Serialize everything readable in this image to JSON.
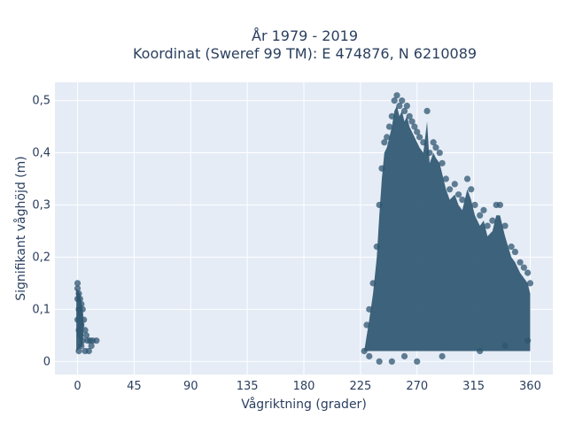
{
  "chart_data": {
    "type": "scatter",
    "title_line1": "År 1979 - 2019",
    "title_line2": "Koordinat (Sweref 99 TM): E 474876, N 6210089",
    "xlabel": "Vågriktning (grader)",
    "ylabel": "Signifikant våghöjd (m)",
    "xlim": [
      -18,
      378
    ],
    "ylim": [
      -0.025,
      0.535
    ],
    "xticks": [
      0,
      45,
      90,
      135,
      180,
      225,
      270,
      315,
      360
    ],
    "xtick_labels": [
      "0",
      "45",
      "90",
      "135",
      "180",
      "225",
      "270",
      "315",
      "360"
    ],
    "yticks": [
      0,
      0.1,
      0.2,
      0.3,
      0.4,
      0.5
    ],
    "ytick_labels": [
      "0",
      "0,1",
      "0,2",
      "0,3",
      "0,4",
      "0,5"
    ],
    "grid": true,
    "marker_color": "#2f5670",
    "plot_bg": "#e5ecf6",
    "points": [
      [
        0,
        0.15
      ],
      [
        0,
        0.14
      ],
      [
        1,
        0.13
      ],
      [
        2,
        0.12
      ],
      [
        0,
        0.12
      ],
      [
        3,
        0.11
      ],
      [
        1,
        0.1
      ],
      [
        4,
        0.1
      ],
      [
        2,
        0.09
      ],
      [
        5,
        0.08
      ],
      [
        0,
        0.08
      ],
      [
        3,
        0.07
      ],
      [
        6,
        0.06
      ],
      [
        1,
        0.06
      ],
      [
        7,
        0.05
      ],
      [
        2,
        0.05
      ],
      [
        8,
        0.04
      ],
      [
        4,
        0.04
      ],
      [
        10,
        0.04
      ],
      [
        12,
        0.04
      ],
      [
        15,
        0.04
      ],
      [
        11,
        0.03
      ],
      [
        3,
        0.03
      ],
      [
        6,
        0.02
      ],
      [
        1,
        0.02
      ],
      [
        9,
        0.02
      ],
      [
        230,
        0.07
      ],
      [
        232,
        0.1
      ],
      [
        235,
        0.15
      ],
      [
        238,
        0.22
      ],
      [
        240,
        0.3
      ],
      [
        242,
        0.37
      ],
      [
        244,
        0.42
      ],
      [
        246,
        0.43
      ],
      [
        248,
        0.45
      ],
      [
        250,
        0.47
      ],
      [
        252,
        0.5
      ],
      [
        254,
        0.51
      ],
      [
        256,
        0.49
      ],
      [
        258,
        0.5
      ],
      [
        260,
        0.48
      ],
      [
        262,
        0.49
      ],
      [
        264,
        0.47
      ],
      [
        266,
        0.46
      ],
      [
        268,
        0.45
      ],
      [
        270,
        0.44
      ],
      [
        272,
        0.43
      ],
      [
        275,
        0.42
      ],
      [
        278,
        0.48
      ],
      [
        280,
        0.4
      ],
      [
        283,
        0.42
      ],
      [
        285,
        0.41
      ],
      [
        288,
        0.4
      ],
      [
        290,
        0.38
      ],
      [
        293,
        0.35
      ],
      [
        296,
        0.33
      ],
      [
        300,
        0.34
      ],
      [
        303,
        0.32
      ],
      [
        306,
        0.31
      ],
      [
        310,
        0.35
      ],
      [
        313,
        0.33
      ],
      [
        316,
        0.3
      ],
      [
        320,
        0.28
      ],
      [
        323,
        0.29
      ],
      [
        326,
        0.26
      ],
      [
        330,
        0.27
      ],
      [
        333,
        0.3
      ],
      [
        336,
        0.3
      ],
      [
        340,
        0.26
      ],
      [
        345,
        0.22
      ],
      [
        348,
        0.21
      ],
      [
        352,
        0.19
      ],
      [
        355,
        0.18
      ],
      [
        358,
        0.17
      ],
      [
        360,
        0.15
      ],
      [
        228,
        0.02
      ],
      [
        232,
        0.01
      ],
      [
        240,
        0.0
      ],
      [
        250,
        0.0
      ],
      [
        260,
        0.01
      ],
      [
        270,
        0.0
      ],
      [
        290,
        0.01
      ],
      [
        320,
        0.02
      ],
      [
        340,
        0.03
      ],
      [
        358,
        0.04
      ]
    ]
  }
}
